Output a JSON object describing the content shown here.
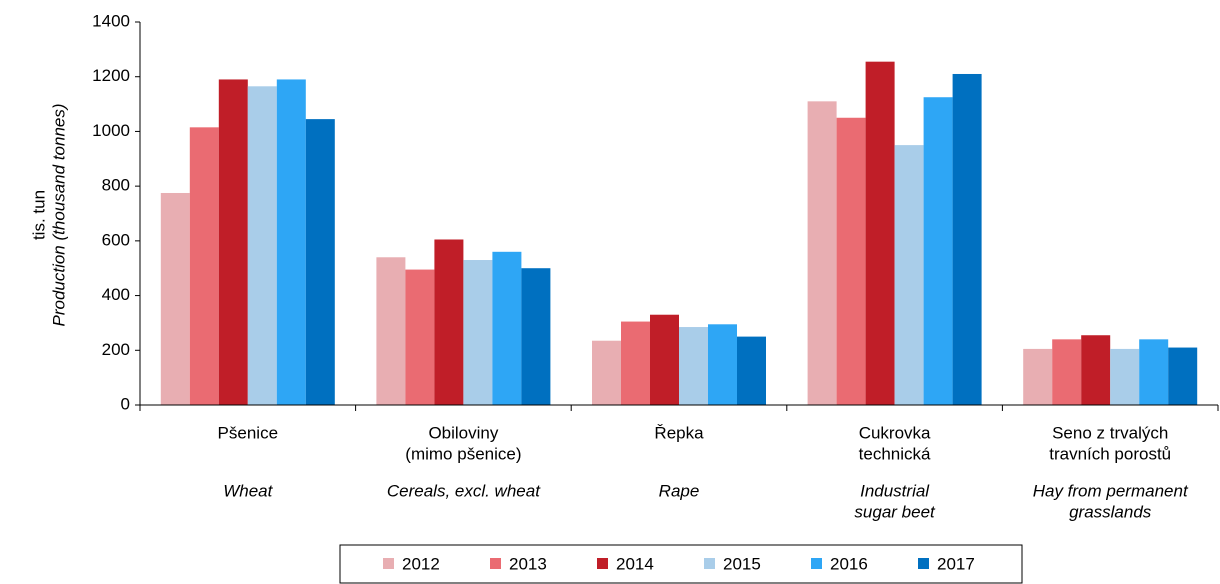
{
  "chart_data": {
    "type": "bar",
    "ylabel": "tis. tun",
    "ylabel_en": "Production (thousand tonnes)",
    "categories": [
      [
        "Pšenice"
      ],
      [
        "Obiloviny",
        "(mimo pšenice)"
      ],
      [
        "Řepka"
      ],
      [
        "Cukrovka",
        "technická"
      ],
      [
        "Seno z trvalých",
        "travních porostů"
      ]
    ],
    "categories_en": [
      [
        "Wheat"
      ],
      [
        "Cereals, excl. wheat"
      ],
      [
        "Rape"
      ],
      [
        "Industrial",
        "sugar beet"
      ],
      [
        "Hay from permanent",
        "grasslands"
      ]
    ],
    "series": [
      {
        "name": "2012",
        "color": "#e8aeb2",
        "values": [
          775,
          540,
          235,
          1110,
          205
        ]
      },
      {
        "name": "2013",
        "color": "#ea6b72",
        "values": [
          1015,
          495,
          305,
          1050,
          240
        ]
      },
      {
        "name": "2014",
        "color": "#c01e28",
        "values": [
          1190,
          605,
          330,
          1255,
          255
        ]
      },
      {
        "name": "2015",
        "color": "#a9cde9",
        "values": [
          1165,
          530,
          285,
          950,
          205
        ]
      },
      {
        "name": "2016",
        "color": "#2ea6f5",
        "values": [
          1190,
          560,
          295,
          1125,
          240
        ]
      },
      {
        "name": "2017",
        "color": "#0070c0",
        "values": [
          1045,
          500,
          250,
          1210,
          210
        ]
      }
    ],
    "ylim": [
      0,
      1400
    ],
    "yticks": [
      0,
      200,
      400,
      600,
      800,
      1000,
      1200,
      1400
    ],
    "legend": "bottom"
  }
}
